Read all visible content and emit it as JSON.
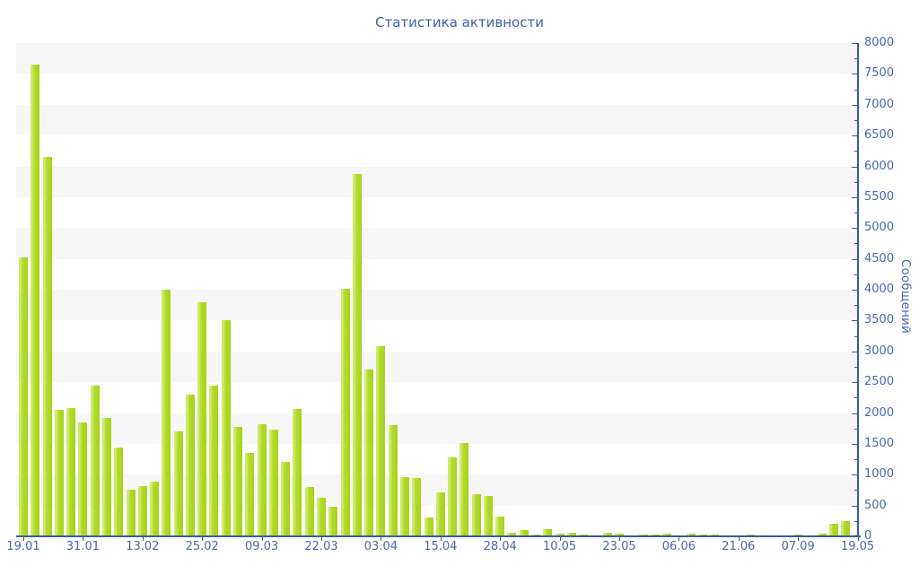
{
  "title": "Статистика активности",
  "colors": {
    "bar_main": "#b2dc2b",
    "bar_highlight": "#cdeb6b",
    "bar_shade": "#a6d11c",
    "axis_line": "#3c599b",
    "label_text": "#4767b2",
    "title_text": "#3f5fa8",
    "band_gray": "#f7f7f7",
    "background": "#ffffff"
  },
  "y_axis": {
    "title": "Сообщений",
    "tick_labels": [
      "0",
      "500",
      "1000",
      "1500",
      "2000",
      "2500",
      "3000",
      "3500",
      "4000",
      "4500",
      "5000",
      "5500",
      "6000",
      "6500",
      "7000",
      "7500",
      "8000"
    ]
  },
  "x_axis": {
    "tick_labels": [
      "19.01",
      "31.01",
      "13.02",
      "25.02",
      "09.03",
      "22.03",
      "03.04",
      "15.04",
      "28.04",
      "10.05",
      "23.05",
      "06.06",
      "21.06",
      "07.09",
      "19.05"
    ]
  },
  "chart_data": {
    "type": "bar",
    "title": "Статистика активности",
    "xlabel": "",
    "ylabel": "Сообщений",
    "ylim": [
      0,
      8000
    ],
    "y_major_step": 500,
    "y_minor_step": 250,
    "grid": "alternating horizontal bands every 500 units, gray on 500-1000, 1500-2000, ... 7500-8000",
    "legend": "none",
    "n_bars": 71,
    "x_tick_every": 5,
    "x_tick_labels": [
      "19.01",
      "31.01",
      "13.02",
      "25.02",
      "09.03",
      "22.03",
      "03.04",
      "15.04",
      "28.04",
      "10.05",
      "23.05",
      "06.06",
      "21.06",
      "07.09",
      "19.05"
    ],
    "values": [
      4520,
      7650,
      6150,
      2050,
      2080,
      1850,
      2450,
      1925,
      1440,
      750,
      810,
      890,
      4000,
      1700,
      2300,
      3800,
      2450,
      3500,
      1780,
      1350,
      1825,
      1730,
      1210,
      2070,
      805,
      630,
      480,
      4020,
      5870,
      2700,
      3090,
      1800,
      955,
      940,
      310,
      710,
      1280,
      1520,
      680,
      650,
      320,
      65,
      105,
      35,
      110,
      40,
      55,
      30,
      10,
      55,
      45,
      15,
      35,
      25,
      45,
      20,
      45,
      35,
      30,
      15,
      20,
      30,
      10,
      15,
      10,
      30,
      15,
      40,
      200,
      250,
      25
    ]
  }
}
